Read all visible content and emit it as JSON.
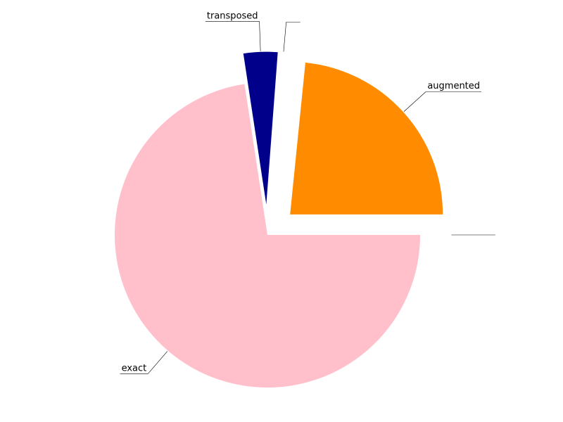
{
  "chart_data": {
    "type": "pie",
    "title": "",
    "slices": [
      {
        "label": "augmented",
        "value": 23.4,
        "color": "#ff8c00",
        "exploded": true
      },
      {
        "label": "",
        "value": 0.4,
        "color": "#ffffff",
        "exploded": true
      },
      {
        "label": "transposed",
        "value": 3.6,
        "color": "#00008b",
        "exploded": true
      },
      {
        "label": "exact",
        "value": 72.6,
        "color": "#ffc0cb",
        "exploded": false
      },
      {
        "label": "",
        "value": 0.0,
        "color": "#ffffff",
        "exploded": true
      }
    ],
    "legend": "none"
  }
}
